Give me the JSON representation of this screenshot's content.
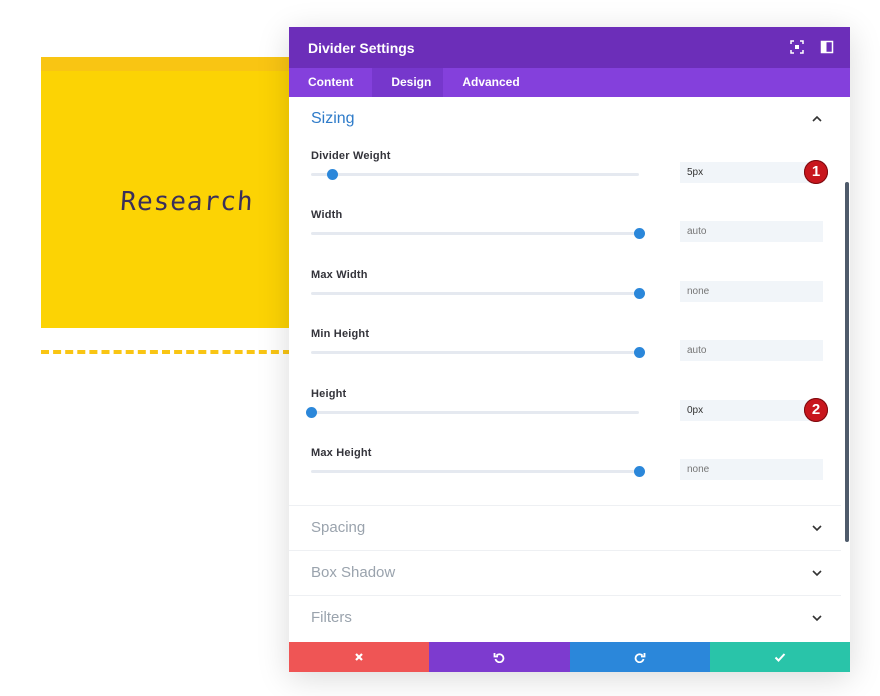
{
  "background": {
    "card_title": "Research",
    "colors": {
      "card": "#fcd304",
      "card_top": "#f9c513"
    }
  },
  "modal": {
    "title": "Divider Settings",
    "header_icons": [
      "expand-icon",
      "sidebar-layout-icon"
    ],
    "tabs": [
      {
        "label": "Content",
        "active": false
      },
      {
        "label": "Design",
        "active": true
      },
      {
        "label": "Advanced",
        "active": false
      }
    ],
    "colors": {
      "header": "#6c2eb9",
      "tabs": "#8440dc",
      "accent": "#2b87da"
    },
    "sizing": {
      "title": "Sizing",
      "fields": [
        {
          "label": "Divider Weight",
          "value": "5px",
          "placeholder": "",
          "slider_fraction": 0.065,
          "marker": "1"
        },
        {
          "label": "Width",
          "value": "",
          "placeholder": "auto",
          "slider_fraction": 1.0,
          "marker": ""
        },
        {
          "label": "Max Width",
          "value": "",
          "placeholder": "none",
          "slider_fraction": 1.0,
          "marker": ""
        },
        {
          "label": "Min Height",
          "value": "",
          "placeholder": "auto",
          "slider_fraction": 1.0,
          "marker": ""
        },
        {
          "label": "Height",
          "value": "0px",
          "placeholder": "",
          "slider_fraction": 0.0,
          "marker": "2"
        },
        {
          "label": "Max Height",
          "value": "",
          "placeholder": "none",
          "slider_fraction": 1.0,
          "marker": ""
        }
      ]
    },
    "collapsed_sections": [
      {
        "label": "Spacing"
      },
      {
        "label": "Box Shadow"
      },
      {
        "label": "Filters"
      }
    ],
    "footer": {
      "buttons": [
        {
          "name": "cancel-button",
          "icon": "close-icon",
          "color": "#ef5555"
        },
        {
          "name": "undo-button",
          "icon": "undo-icon",
          "color": "#7d3bcf"
        },
        {
          "name": "redo-button",
          "icon": "redo-icon",
          "color": "#2b87da"
        },
        {
          "name": "save-button",
          "icon": "check-icon",
          "color": "#29c4a9"
        }
      ]
    }
  }
}
